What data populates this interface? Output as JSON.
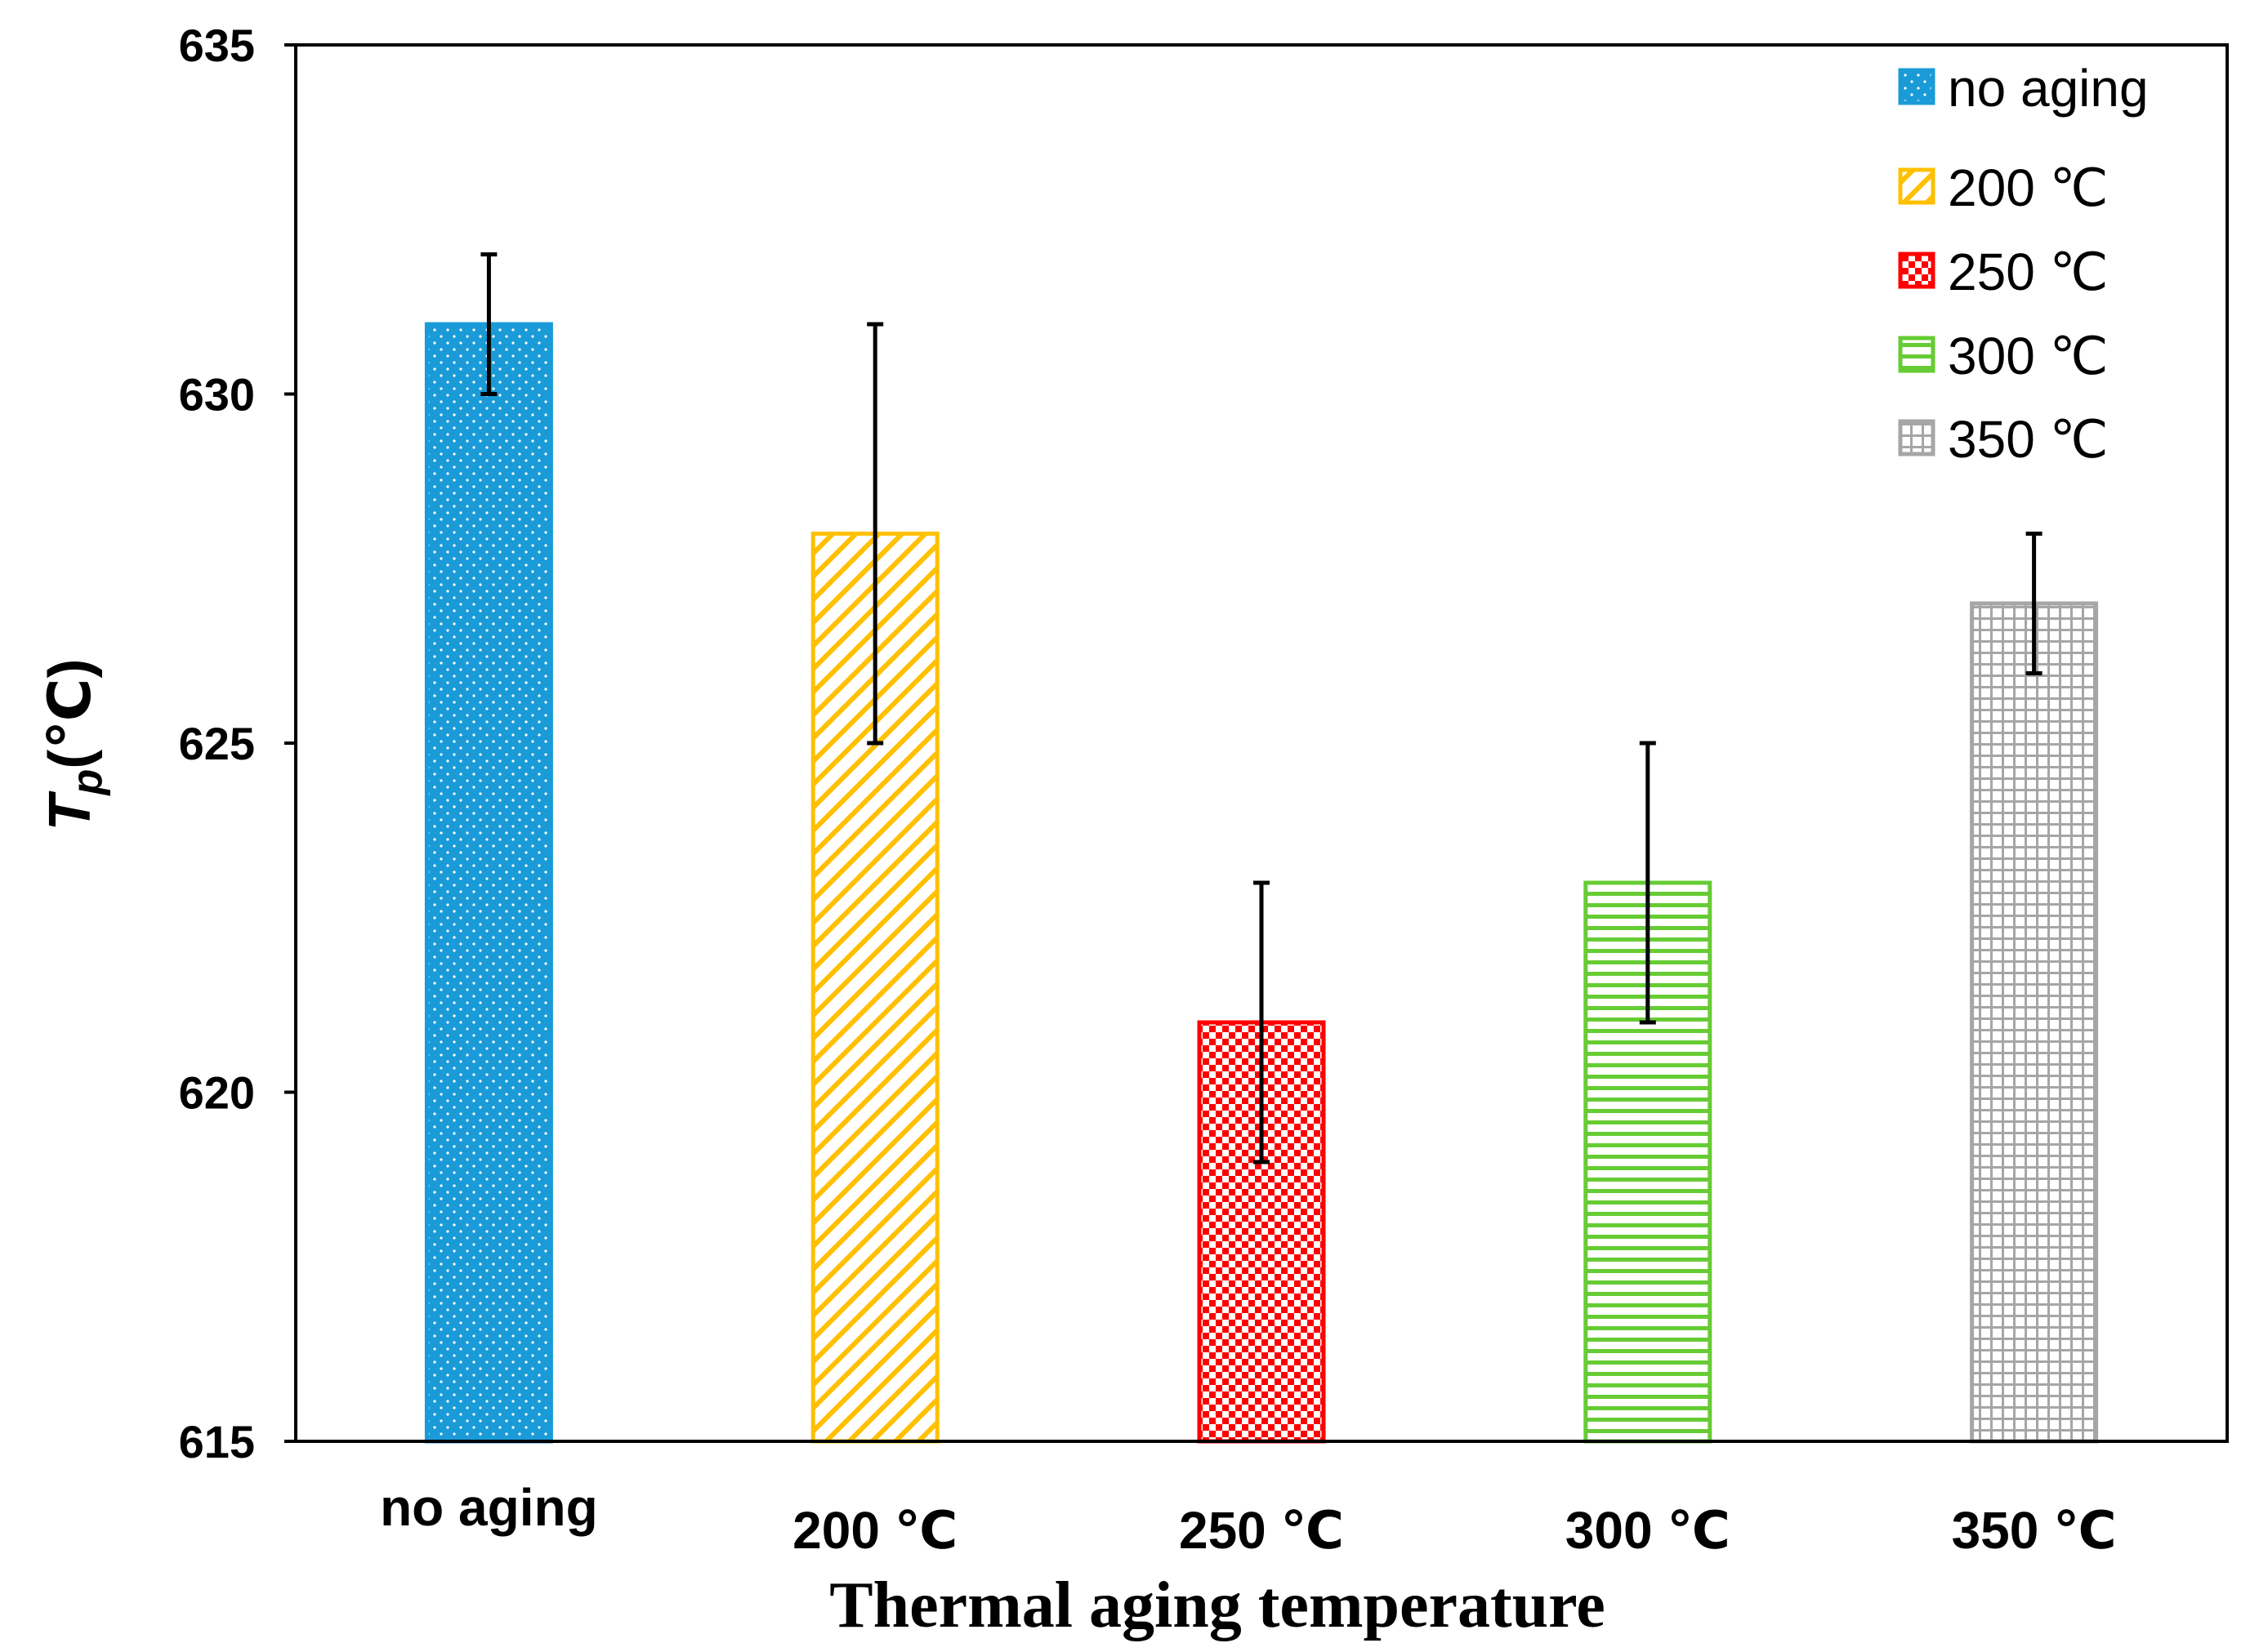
{
  "chart_data": {
    "type": "bar",
    "title": "",
    "xlabel": "Thermal aging temperature",
    "ylabel": {
      "main": "T",
      "sub": "p",
      "unit": "(℃)"
    },
    "ylim": [
      615,
      635
    ],
    "yticks": [
      "615",
      "620",
      "625",
      "630",
      "635"
    ],
    "grid": false,
    "legend_position": "top-right",
    "categories": [
      "no aging",
      "200 ℃",
      "250 ℃",
      "300 ℃",
      "350 ℃"
    ],
    "values": [
      631,
      628,
      621,
      623,
      627
    ],
    "error_low": [
      630,
      625,
      619,
      621,
      626
    ],
    "error_high": [
      632,
      631,
      623,
      625,
      628
    ],
    "series_styles": [
      {
        "name": "no aging",
        "color": "#1a9bd8",
        "pattern": "dots"
      },
      {
        "name": "200 ℃",
        "color": "#ffc000",
        "pattern": "diagonal"
      },
      {
        "name": "250 ℃",
        "color": "#ff0000",
        "pattern": "checker"
      },
      {
        "name": "300 ℃",
        "color": "#66cc33",
        "pattern": "horizontal"
      },
      {
        "name": "350 ℃",
        "color": "#a6a6a6",
        "pattern": "grid"
      }
    ]
  }
}
